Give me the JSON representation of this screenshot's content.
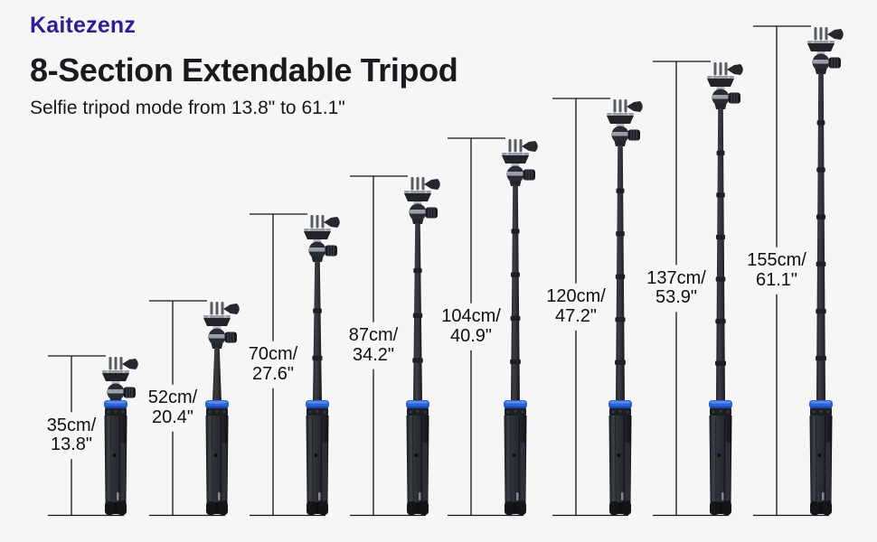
{
  "page": {
    "background": "#f6f6f7"
  },
  "header": {
    "brand": "Kaitezenz",
    "title": "8-Section Extendable Tripod",
    "subtitle": "Selfie tripod mode from 13.8\" to 61.1\""
  },
  "colors": {
    "brand_text": "#2e1d93",
    "title_text": "#1a191f",
    "collar_blue": "#2a63d9",
    "dimension_line": "#141416",
    "tripod_body": "#2b2e33"
  },
  "tripods": [
    {
      "height_cm": 35,
      "height_in": 13.8,
      "label_cm": "35cm/",
      "label_in": "13.8\""
    },
    {
      "height_cm": 52,
      "height_in": 20.4,
      "label_cm": "52cm/",
      "label_in": "20.4\""
    },
    {
      "height_cm": 70,
      "height_in": 27.6,
      "label_cm": "70cm/",
      "label_in": "27.6\""
    },
    {
      "height_cm": 87,
      "height_in": 34.2,
      "label_cm": "87cm/",
      "label_in": "34.2\""
    },
    {
      "height_cm": 104,
      "height_in": 40.9,
      "label_cm": "104cm/",
      "label_in": "40.9\""
    },
    {
      "height_cm": 120,
      "height_in": 47.2,
      "label_cm": "120cm/",
      "label_in": "47.2\""
    },
    {
      "height_cm": 137,
      "height_in": 53.9,
      "label_cm": "137cm/",
      "label_in": "53.9\""
    },
    {
      "height_cm": 155,
      "height_in": 61.1,
      "label_cm": "155cm/",
      "label_in": "61.1\""
    }
  ]
}
